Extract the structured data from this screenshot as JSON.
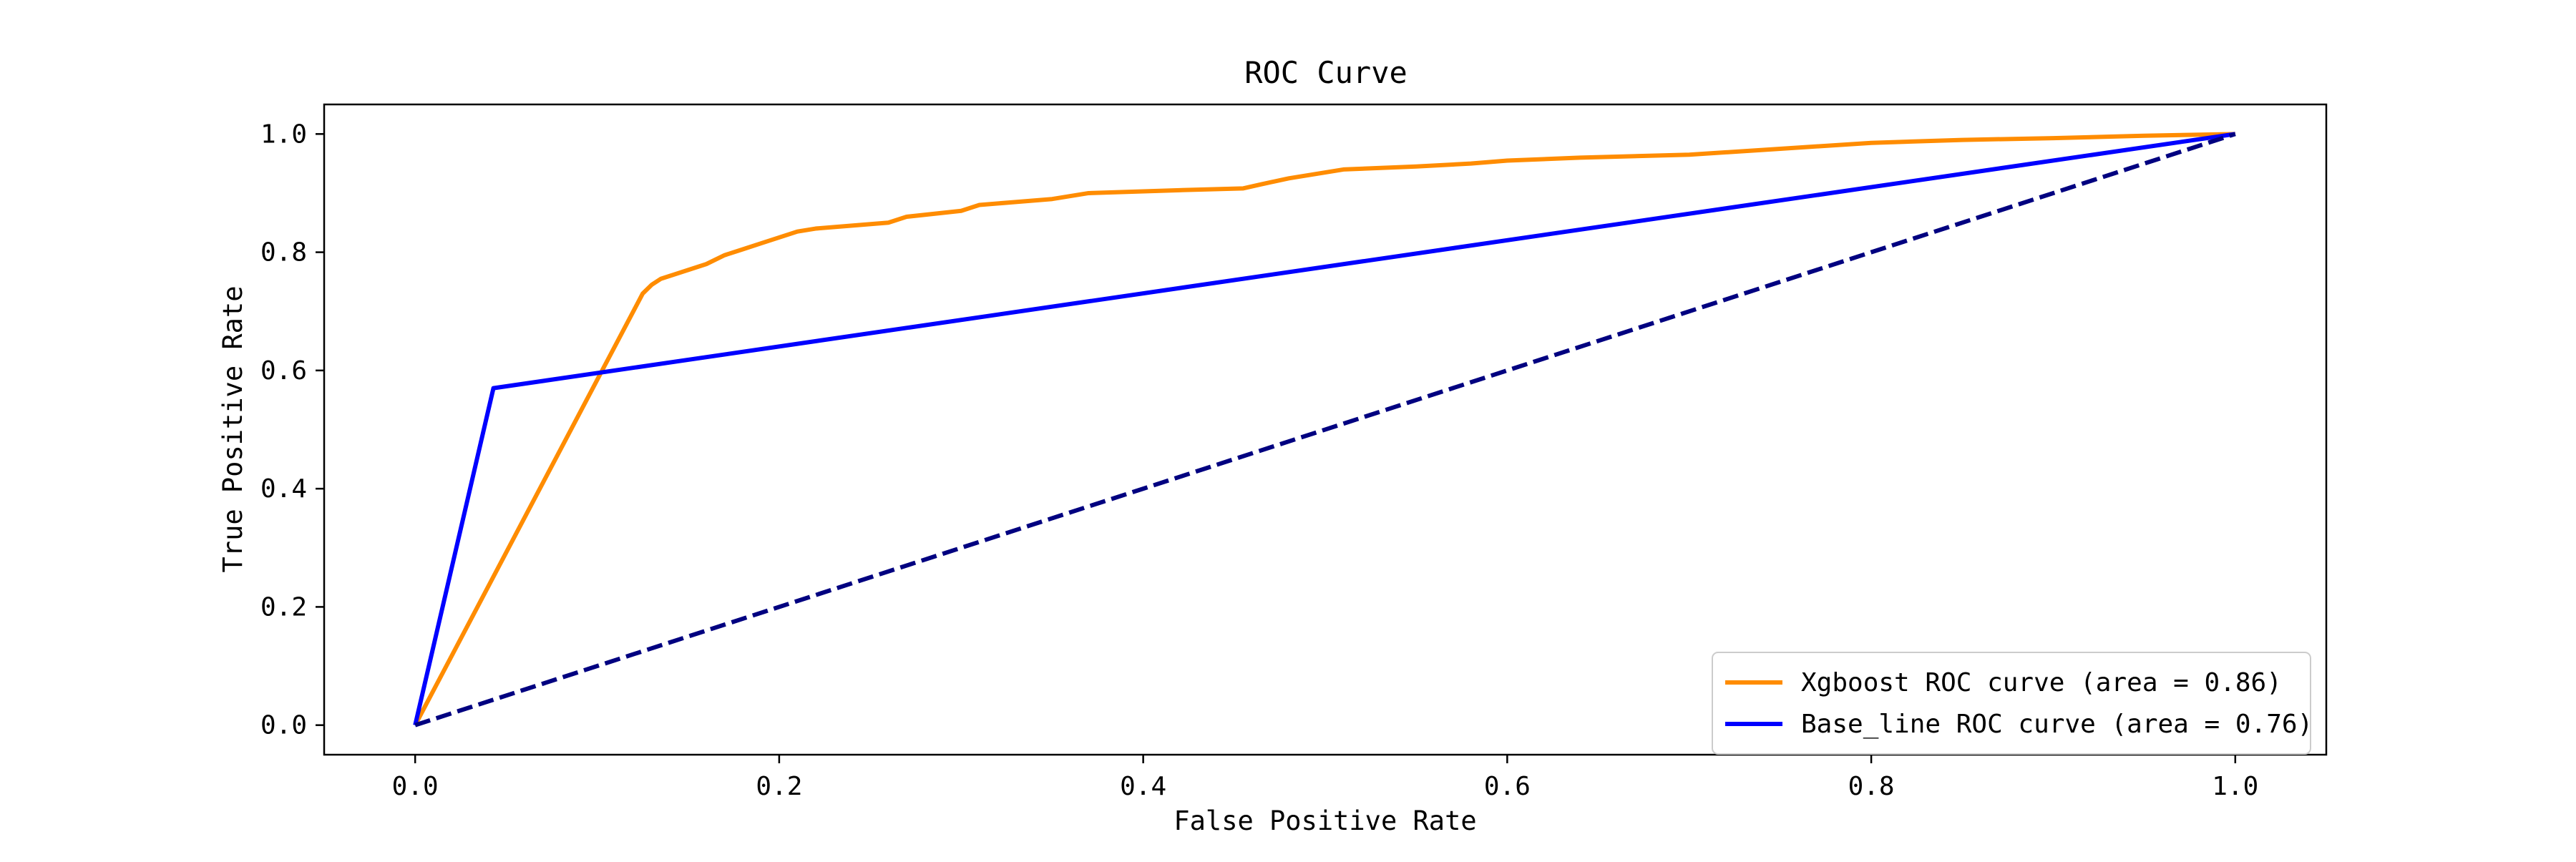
{
  "chart_data": {
    "type": "line",
    "title": "ROC Curve",
    "xlabel": "False Positive Rate",
    "ylabel": "True Positive Rate",
    "xlim": [
      -0.05,
      1.05
    ],
    "ylim": [
      -0.05,
      1.05
    ],
    "xticks": [
      0.0,
      0.2,
      0.4,
      0.6,
      0.8,
      1.0
    ],
    "xtick_labels": [
      "0.0",
      "0.2",
      "0.4",
      "0.6",
      "0.8",
      "1.0"
    ],
    "yticks": [
      0.0,
      0.2,
      0.4,
      0.6,
      0.8,
      1.0
    ],
    "ytick_labels": [
      "0.0",
      "0.2",
      "0.4",
      "0.6",
      "0.8",
      "1.0"
    ],
    "grid": false,
    "legend_position": "lower-right",
    "series": [
      {
        "name": "Xgboost ROC curve (area = 0.86)",
        "color": "#ff8c00",
        "style": "solid",
        "x": [
          0.0,
          0.125,
          0.13,
          0.135,
          0.14,
          0.15,
          0.16,
          0.17,
          0.18,
          0.19,
          0.2,
          0.21,
          0.22,
          0.24,
          0.26,
          0.27,
          0.3,
          0.31,
          0.33,
          0.35,
          0.37,
          0.42,
          0.455,
          0.465,
          0.48,
          0.5,
          0.51,
          0.55,
          0.58,
          0.6,
          0.64,
          0.7,
          0.75,
          0.8,
          0.85,
          0.9,
          0.95,
          1.0
        ],
        "y": [
          0.0,
          0.73,
          0.745,
          0.755,
          0.76,
          0.77,
          0.78,
          0.795,
          0.805,
          0.815,
          0.825,
          0.835,
          0.84,
          0.845,
          0.85,
          0.86,
          0.87,
          0.88,
          0.885,
          0.89,
          0.9,
          0.905,
          0.908,
          0.915,
          0.925,
          0.935,
          0.94,
          0.945,
          0.95,
          0.955,
          0.96,
          0.965,
          0.975,
          0.985,
          0.99,
          0.993,
          0.997,
          1.0
        ]
      },
      {
        "name": "Base_line ROC curve (area = 0.76)",
        "color": "#0000ff",
        "style": "solid",
        "x": [
          0.0,
          0.043,
          1.0
        ],
        "y": [
          0.0,
          0.57,
          1.0
        ]
      },
      {
        "color": "#000080",
        "style": "dashed",
        "x": [
          0.0,
          1.0
        ],
        "y": [
          0.0,
          1.0
        ]
      }
    ]
  }
}
